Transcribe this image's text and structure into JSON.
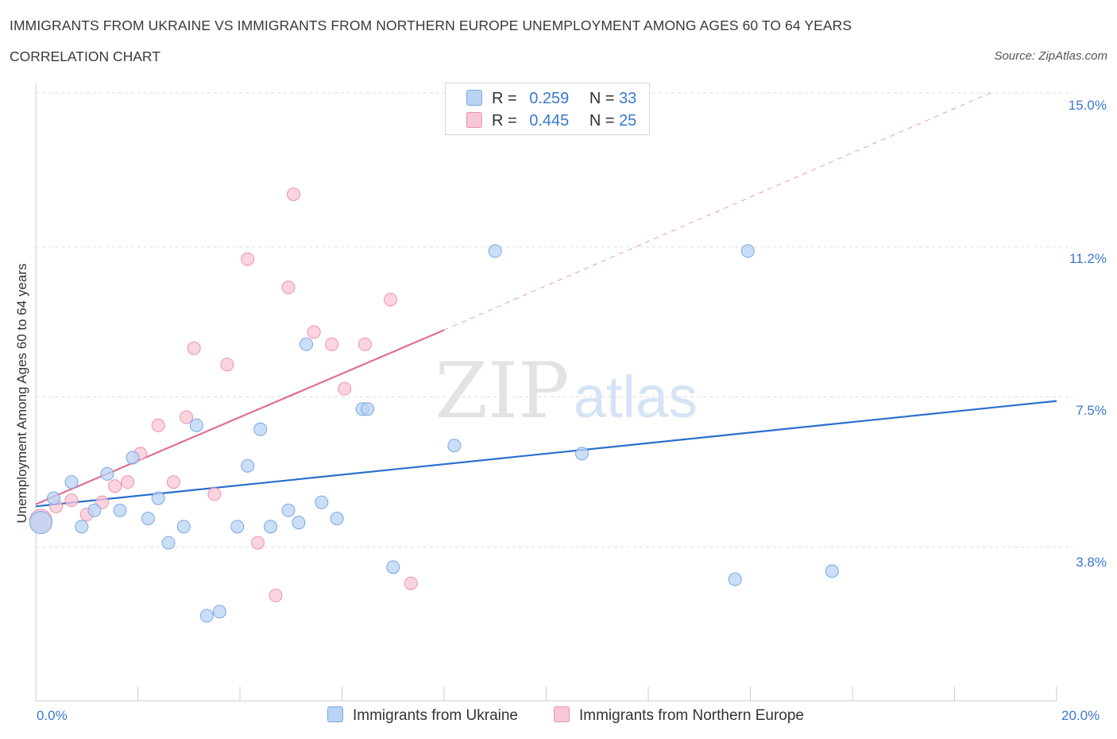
{
  "header": {
    "title": "IMMIGRANTS FROM UKRAINE VS IMMIGRANTS FROM NORTHERN EUROPE UNEMPLOYMENT AMONG AGES 60 TO 64 YEARS",
    "subtitle": "CORRELATION CHART",
    "source": "Source: ZipAtlas.com"
  },
  "watermark": {
    "zip": "ZIP",
    "atlas": "atlas"
  },
  "legend_top": {
    "rows": [
      {
        "r_label": "R =",
        "r_value": "0.259",
        "n_label": "N =",
        "n_value": "33"
      },
      {
        "r_label": "R =",
        "r_value": "0.445",
        "n_label": "N =",
        "n_value": "25"
      }
    ]
  },
  "legend_bottom": {
    "items": [
      {
        "label": "Immigrants from Ukraine"
      },
      {
        "label": "Immigrants from Northern Europe"
      }
    ]
  },
  "colors": {
    "ukraine_fill": "#b9d3f5",
    "ukraine_stroke": "#7aa7e0",
    "ukraine_line": "#2b6fce",
    "northern_fill": "#f9c6d6",
    "northern_stroke": "#ec93ae",
    "northern_line": "#e06e95",
    "grid": "#dddddd",
    "tick_text": "#3a78d0"
  },
  "chart_data": {
    "type": "scatter",
    "title": "IMMIGRANTS FROM UKRAINE VS IMMIGRANTS FROM NORTHERN EUROPE UNEMPLOYMENT AMONG AGES 60 TO 64 YEARS",
    "xlabel": "",
    "ylabel": "Unemployment Among Ages 60 to 64 years",
    "xlim": [
      0,
      20
    ],
    "ylim": [
      0,
      15
    ],
    "x_tick_labels": [
      "0.0%",
      "20.0%"
    ],
    "y_ticks": [
      3.8,
      7.5,
      11.2,
      15.0
    ],
    "y_tick_labels": [
      "3.8%",
      "7.5%",
      "11.2%",
      "15.0%"
    ],
    "grid": "horizontal dashed",
    "legend_placement": "bottom",
    "series": [
      {
        "name": "Immigrants from Ukraine",
        "R": 0.259,
        "N": 33,
        "points": [
          [
            0.1,
            4.4
          ],
          [
            0.35,
            5.0
          ],
          [
            0.7,
            5.4
          ],
          [
            0.9,
            4.3
          ],
          [
            1.15,
            4.7
          ],
          [
            1.4,
            5.6
          ],
          [
            1.65,
            4.7
          ],
          [
            1.9,
            6.0
          ],
          [
            2.2,
            4.5
          ],
          [
            2.4,
            5.0
          ],
          [
            2.6,
            3.9
          ],
          [
            2.9,
            4.3
          ],
          [
            3.15,
            6.8
          ],
          [
            3.35,
            2.1
          ],
          [
            3.6,
            2.2
          ],
          [
            3.95,
            4.3
          ],
          [
            4.15,
            5.8
          ],
          [
            4.4,
            6.7
          ],
          [
            4.6,
            4.3
          ],
          [
            4.95,
            4.7
          ],
          [
            5.15,
            4.4
          ],
          [
            5.3,
            8.8
          ],
          [
            5.6,
            4.9
          ],
          [
            5.9,
            4.5
          ],
          [
            6.4,
            7.2
          ],
          [
            6.5,
            7.2
          ],
          [
            7.0,
            3.3
          ],
          [
            8.2,
            6.3
          ],
          [
            9.0,
            11.1
          ],
          [
            10.7,
            6.1
          ],
          [
            13.7,
            3.0
          ],
          [
            13.95,
            11.1
          ],
          [
            15.6,
            3.2
          ]
        ],
        "trend": {
          "x": [
            0,
            20
          ],
          "y": [
            4.8,
            7.4
          ]
        }
      },
      {
        "name": "Immigrants from Northern Europe",
        "R": 0.445,
        "N": 25,
        "points": [
          [
            0.1,
            4.45
          ],
          [
            0.4,
            4.8
          ],
          [
            0.7,
            4.95
          ],
          [
            1.0,
            4.6
          ],
          [
            1.3,
            4.9
          ],
          [
            1.55,
            5.3
          ],
          [
            1.8,
            5.4
          ],
          [
            2.05,
            6.1
          ],
          [
            2.4,
            6.8
          ],
          [
            2.7,
            5.4
          ],
          [
            2.95,
            7.0
          ],
          [
            3.1,
            8.7
          ],
          [
            3.5,
            5.1
          ],
          [
            3.75,
            8.3
          ],
          [
            4.15,
            10.9
          ],
          [
            4.35,
            3.9
          ],
          [
            4.7,
            2.6
          ],
          [
            4.95,
            10.2
          ],
          [
            5.05,
            12.5
          ],
          [
            5.45,
            9.1
          ],
          [
            5.8,
            8.8
          ],
          [
            6.05,
            7.7
          ],
          [
            6.45,
            8.8
          ],
          [
            6.95,
            9.9
          ],
          [
            7.35,
            2.9
          ]
        ],
        "trend": {
          "x": [
            0,
            8
          ],
          "y": [
            4.85,
            9.15
          ]
        },
        "trend_extrapolated": {
          "x": [
            8,
            18.7
          ],
          "y": [
            9.15,
            15.0
          ]
        }
      }
    ]
  }
}
